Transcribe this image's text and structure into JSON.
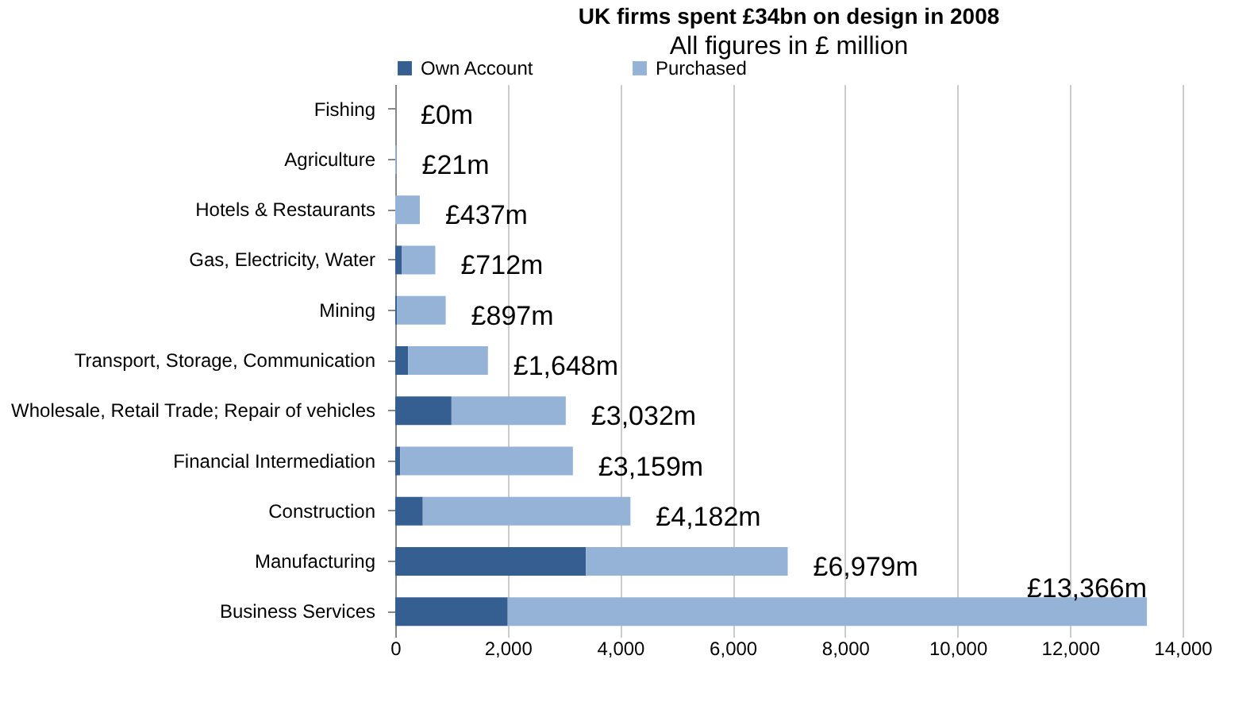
{
  "chart_data": {
    "type": "bar",
    "orientation": "horizontal",
    "stacked": true,
    "title": "UK firms spent £34bn on design in 2008",
    "subtitle": "All figures in £ million",
    "categories": [
      "Fishing",
      "Agriculture",
      "Hotels & Restaurants",
      "Gas, Electricity, Water",
      "Mining",
      "Transport, Storage, Communication",
      "Wholesale, Retail Trade; Repair of vehicles",
      "Financial Intermediation",
      "Construction",
      "Manufacturing",
      "Business Services"
    ],
    "series": [
      {
        "name": "Own Account",
        "color": "#355f91",
        "values": [
          0,
          0,
          0,
          120,
          30,
          230,
          1000,
          90,
          490,
          3390,
          2000
        ]
      },
      {
        "name": "Purchased",
        "color": "#95b3d7",
        "values": [
          0,
          21,
          437,
          592,
          867,
          1418,
          2032,
          3069,
          3692,
          3589,
          11366
        ]
      }
    ],
    "totals": [
      "£0m",
      "£21m",
      "£437m",
      "£712m",
      "£897m",
      "£1,648m",
      "£3,032m",
      "£3,159m",
      "£4,182m",
      "£6,979m",
      "£13,366m"
    ],
    "xlim": [
      0,
      14000
    ],
    "xticks": [
      0,
      {
        "value": 2000,
        "label": "2,000"
      },
      {
        "value": 4000,
        "label": "4,000"
      },
      {
        "value": 6000,
        "label": "6,000"
      },
      {
        "value": 8000,
        "label": "8,000"
      },
      {
        "value": 10000,
        "label": "10,000"
      },
      {
        "value": 12000,
        "label": "12,000"
      },
      {
        "value": 14000,
        "label": "14,000"
      }
    ],
    "grid": "x",
    "legend": "top"
  }
}
